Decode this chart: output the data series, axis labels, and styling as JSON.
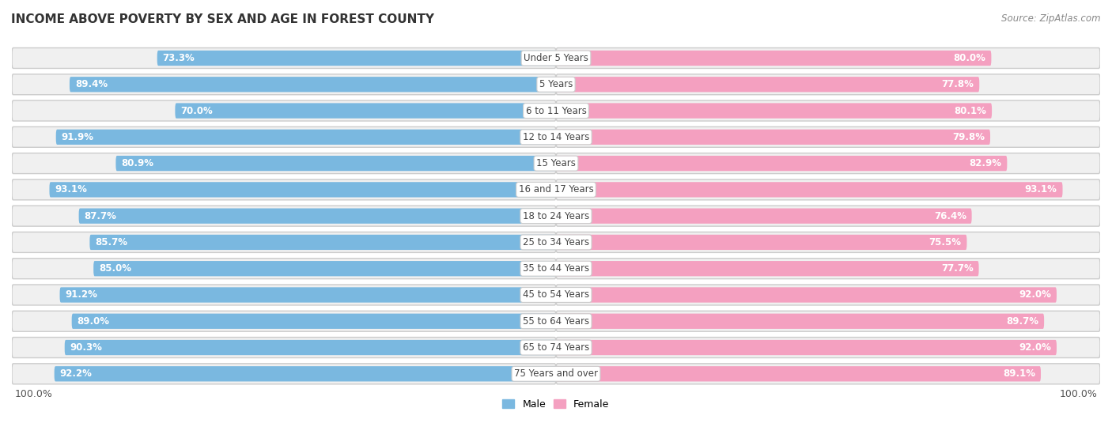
{
  "title": "INCOME ABOVE POVERTY BY SEX AND AGE IN FOREST COUNTY",
  "source": "Source: ZipAtlas.com",
  "categories": [
    "Under 5 Years",
    "5 Years",
    "6 to 11 Years",
    "12 to 14 Years",
    "15 Years",
    "16 and 17 Years",
    "18 to 24 Years",
    "25 to 34 Years",
    "35 to 44 Years",
    "45 to 54 Years",
    "55 to 64 Years",
    "65 to 74 Years",
    "75 Years and over"
  ],
  "male_values": [
    73.3,
    89.4,
    70.0,
    91.9,
    80.9,
    93.1,
    87.7,
    85.7,
    85.0,
    91.2,
    89.0,
    90.3,
    92.2
  ],
  "female_values": [
    80.0,
    77.8,
    80.1,
    79.8,
    82.9,
    93.1,
    76.4,
    75.5,
    77.7,
    92.0,
    89.7,
    92.0,
    89.1
  ],
  "male_color": "#7ab8e0",
  "male_color_dark": "#5a9ec8",
  "female_color": "#f4a0c0",
  "female_color_dark": "#e8609a",
  "male_label": "Male",
  "female_label": "Female",
  "background_color": "#ffffff",
  "row_bg_color": "#f0f0f0",
  "max_value": 100.0,
  "title_fontsize": 11,
  "label_fontsize": 8.5,
  "tick_fontsize": 9,
  "source_fontsize": 8.5,
  "legend_fontsize": 9
}
